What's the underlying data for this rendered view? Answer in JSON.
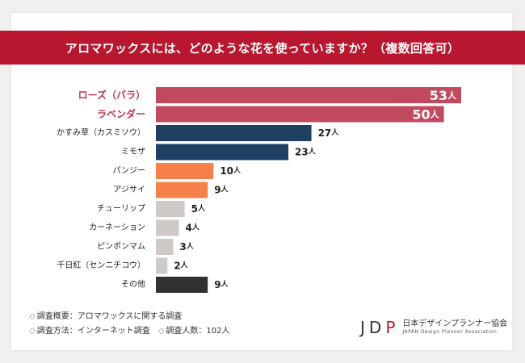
{
  "title": "アロマワックスには、どのような花を使っていますか？（複数回答可）",
  "unit": "人",
  "colors": {
    "header_bg": "#b8172f",
    "top_bar": "#c24a5f",
    "top_label": "#c0334d",
    "navy_bar": "#1f3f63",
    "orange_bar": "#f6804a",
    "gray_bar": "#cfcac7",
    "dark_bar": "#333030"
  },
  "chart_data": {
    "type": "bar",
    "orientation": "horizontal",
    "categories": [
      "ローズ（バラ）",
      "ラベンダー",
      "かすみ草（カスミソウ）",
      "ミモザ",
      "パンジー",
      "アジサイ",
      "チューリップ",
      "カーネーション",
      "ピンポンマム",
      "千日紅（センニチコウ）",
      "その他"
    ],
    "values": [
      53,
      50,
      27,
      23,
      10,
      9,
      5,
      4,
      3,
      2,
      9
    ],
    "value_unit": "人",
    "bar_colors": [
      "#c24a5f",
      "#c24a5f",
      "#1f3f63",
      "#1f3f63",
      "#f6804a",
      "#f6804a",
      "#cfcac7",
      "#cfcac7",
      "#cfcac7",
      "#cfcac7",
      "#333030"
    ],
    "highlight_top": 2,
    "grid": false,
    "legend": "none"
  },
  "footer": {
    "survey_summary": "調査概要：アロマワックスに関する調査",
    "survey_method": "調査方法：インターネット調査",
    "respondents": "調査人数：102人",
    "diamond": "◇"
  },
  "logo": {
    "mark_jd": "JD",
    "mark_p": "P",
    "name_jp": "日本デザインプランナー協会",
    "name_en": "JAPAN Design Planner Association"
  }
}
